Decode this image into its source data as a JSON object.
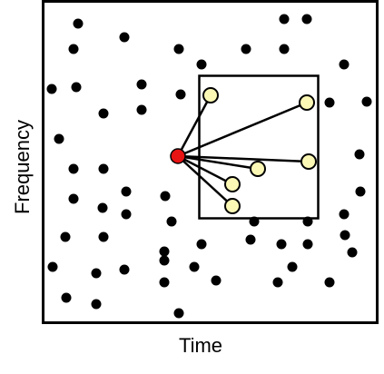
{
  "labels": {
    "x_axis": "Time",
    "y_axis": "Frequency"
  },
  "colors": {
    "background": "#ffffff",
    "ink": "#000000",
    "anchor_fill": "#e81313",
    "target_fill": "#fbf7b5"
  }
}
